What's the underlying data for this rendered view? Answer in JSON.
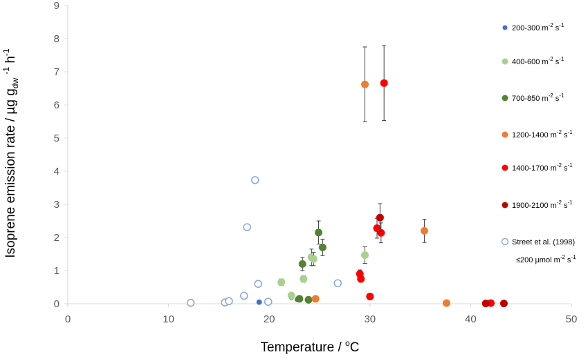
{
  "chart_data": {
    "type": "scatter",
    "xlabel": {
      "main": "Temperature / ",
      "sup": "o",
      "tail": "C"
    },
    "ylabel": {
      "a": "Isoprene emission rate / µg g",
      "sub": "dw",
      "b": " ",
      "sup1": "-1",
      "c": " h",
      "sup2": "-1"
    },
    "xlim": [
      0,
      50
    ],
    "ylim": [
      0,
      9
    ],
    "xticks": [
      "0",
      "10",
      "20",
      "30",
      "40",
      "50"
    ],
    "yticks": [
      "0",
      "1",
      "2",
      "3",
      "4",
      "5",
      "6",
      "7",
      "8",
      "9"
    ],
    "grid": false,
    "legend_position": "right",
    "series": [
      {
        "name": "200-300 m",
        "unit_sup1": "-2",
        "unit_mid": " s",
        "unit_sup2": "-1",
        "color": "#4472C4",
        "marker": "small-filled",
        "points": [
          {
            "x": 19.0,
            "y": 0.05
          },
          {
            "x": 22.2,
            "y": 0.2
          },
          {
            "x": 22.8,
            "y": 0.13
          }
        ]
      },
      {
        "name": "400-600 m",
        "unit_sup1": "-2",
        "unit_mid": " s",
        "unit_sup2": "-1",
        "color": "#A9D18E",
        "marker": "filled",
        "points": [
          {
            "x": 21.2,
            "y": 0.65,
            "err": 0.1
          },
          {
            "x": 22.2,
            "y": 0.25
          },
          {
            "x": 23.4,
            "y": 0.75,
            "err": 0.1
          },
          {
            "x": 24.2,
            "y": 1.4,
            "err": 0.25
          },
          {
            "x": 24.4,
            "y": 1.35,
            "err": 0.2
          },
          {
            "x": 29.5,
            "y": 1.47,
            "err": 0.25
          }
        ]
      },
      {
        "name": "700-850 m",
        "unit_sup1": "-2",
        "unit_mid": " s",
        "unit_sup2": "-1",
        "color": "#548235",
        "marker": "filled",
        "points": [
          {
            "x": 23.0,
            "y": 0.15
          },
          {
            "x": 23.9,
            "y": 0.12
          },
          {
            "x": 23.3,
            "y": 1.2,
            "err": 0.2
          },
          {
            "x": 24.9,
            "y": 2.15,
            "err": 0.35
          },
          {
            "x": 25.3,
            "y": 1.7,
            "err": 0.25
          }
        ]
      },
      {
        "name": "1200-1400 m",
        "unit_sup1": "-2",
        "unit_mid": " s",
        "unit_sup2": "-1",
        "color": "#ED7D31",
        "marker": "filled",
        "points": [
          {
            "x": 29.5,
            "y": 6.62,
            "err": 1.13
          },
          {
            "x": 24.6,
            "y": 0.15
          },
          {
            "x": 35.4,
            "y": 2.2,
            "err": 0.35
          },
          {
            "x": 37.6,
            "y": 0.02
          }
        ]
      },
      {
        "name": "1400-1700 m",
        "unit_sup1": "-2",
        "unit_mid": " s",
        "unit_sup2": "-1",
        "color": "#FF0000",
        "marker": "filled",
        "points": [
          {
            "x": 31.4,
            "y": 6.66,
            "err": 1.13
          },
          {
            "x": 29.0,
            "y": 0.9,
            "err": 0.12
          },
          {
            "x": 29.1,
            "y": 0.75,
            "err": 0.1
          },
          {
            "x": 30.0,
            "y": 0.22
          },
          {
            "x": 30.7,
            "y": 2.28,
            "err": 0.3
          },
          {
            "x": 31.1,
            "y": 2.14,
            "err": 0.3
          },
          {
            "x": 42.0,
            "y": 0.02
          }
        ]
      },
      {
        "name": "1900-2100 m",
        "unit_sup1": "-2",
        "unit_mid": " s",
        "unit_sup2": "-1",
        "color": "#C00000",
        "marker": "filled",
        "points": [
          {
            "x": 31.0,
            "y": 2.6,
            "err": 0.42
          },
          {
            "x": 41.5,
            "y": 0.01
          },
          {
            "x": 43.3,
            "y": 0.01
          }
        ]
      },
      {
        "name": "Street et al. (1998)",
        "line2_pre": "≤200 µmol m",
        "unit_sup1": "-2",
        "unit_mid": " s",
        "unit_sup2": "-1",
        "color": "#8EA9DB",
        "marker": "open",
        "points": [
          {
            "x": 12.2,
            "y": 0.03
          },
          {
            "x": 15.6,
            "y": 0.04
          },
          {
            "x": 16.0,
            "y": 0.08
          },
          {
            "x": 17.5,
            "y": 0.24
          },
          {
            "x": 17.8,
            "y": 2.31
          },
          {
            "x": 18.6,
            "y": 3.73
          },
          {
            "x": 18.9,
            "y": 0.6
          },
          {
            "x": 19.9,
            "y": 0.06
          },
          {
            "x": 26.8,
            "y": 0.62
          }
        ]
      }
    ]
  }
}
